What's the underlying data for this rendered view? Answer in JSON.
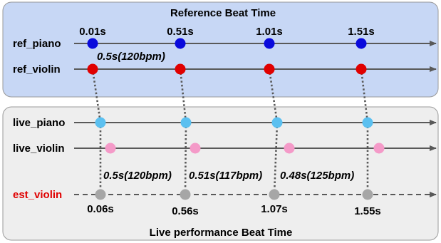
{
  "reference_panel": {
    "title": "Reference Beat Time",
    "tracks": [
      {
        "label": "ref_piano",
        "color": "#0a0adc"
      },
      {
        "label": "ref_violin",
        "color": "#e00000"
      }
    ],
    "beat_times": [
      "0.01s",
      "0.51s",
      "1.01s",
      "1.51s"
    ],
    "interval_annotation": "0.5s(120bpm)"
  },
  "live_panel": {
    "title": "Live performance Beat Time",
    "tracks": [
      {
        "label": "live_piano",
        "color": "#5bc0f0"
      },
      {
        "label": "live_violin",
        "color": "#f49ac8"
      }
    ],
    "estimate": {
      "label": "est_violin",
      "label_color": "#e00000",
      "color": "#a6a6a6"
    },
    "beat_times": [
      "0.06s",
      "0.56s",
      "1.07s",
      "1.55s"
    ],
    "interval_annotations": [
      "0.5s(120bpm)",
      "0.51s(117bpm)",
      "0.48s(125bpm)"
    ]
  },
  "colors": {
    "reference_panel_bg": "#c7d7f5",
    "live_panel_bg": "#eeeeee",
    "panel_border": "#9a9a9a",
    "axis": "#595959",
    "dotted_link": "#595959"
  }
}
